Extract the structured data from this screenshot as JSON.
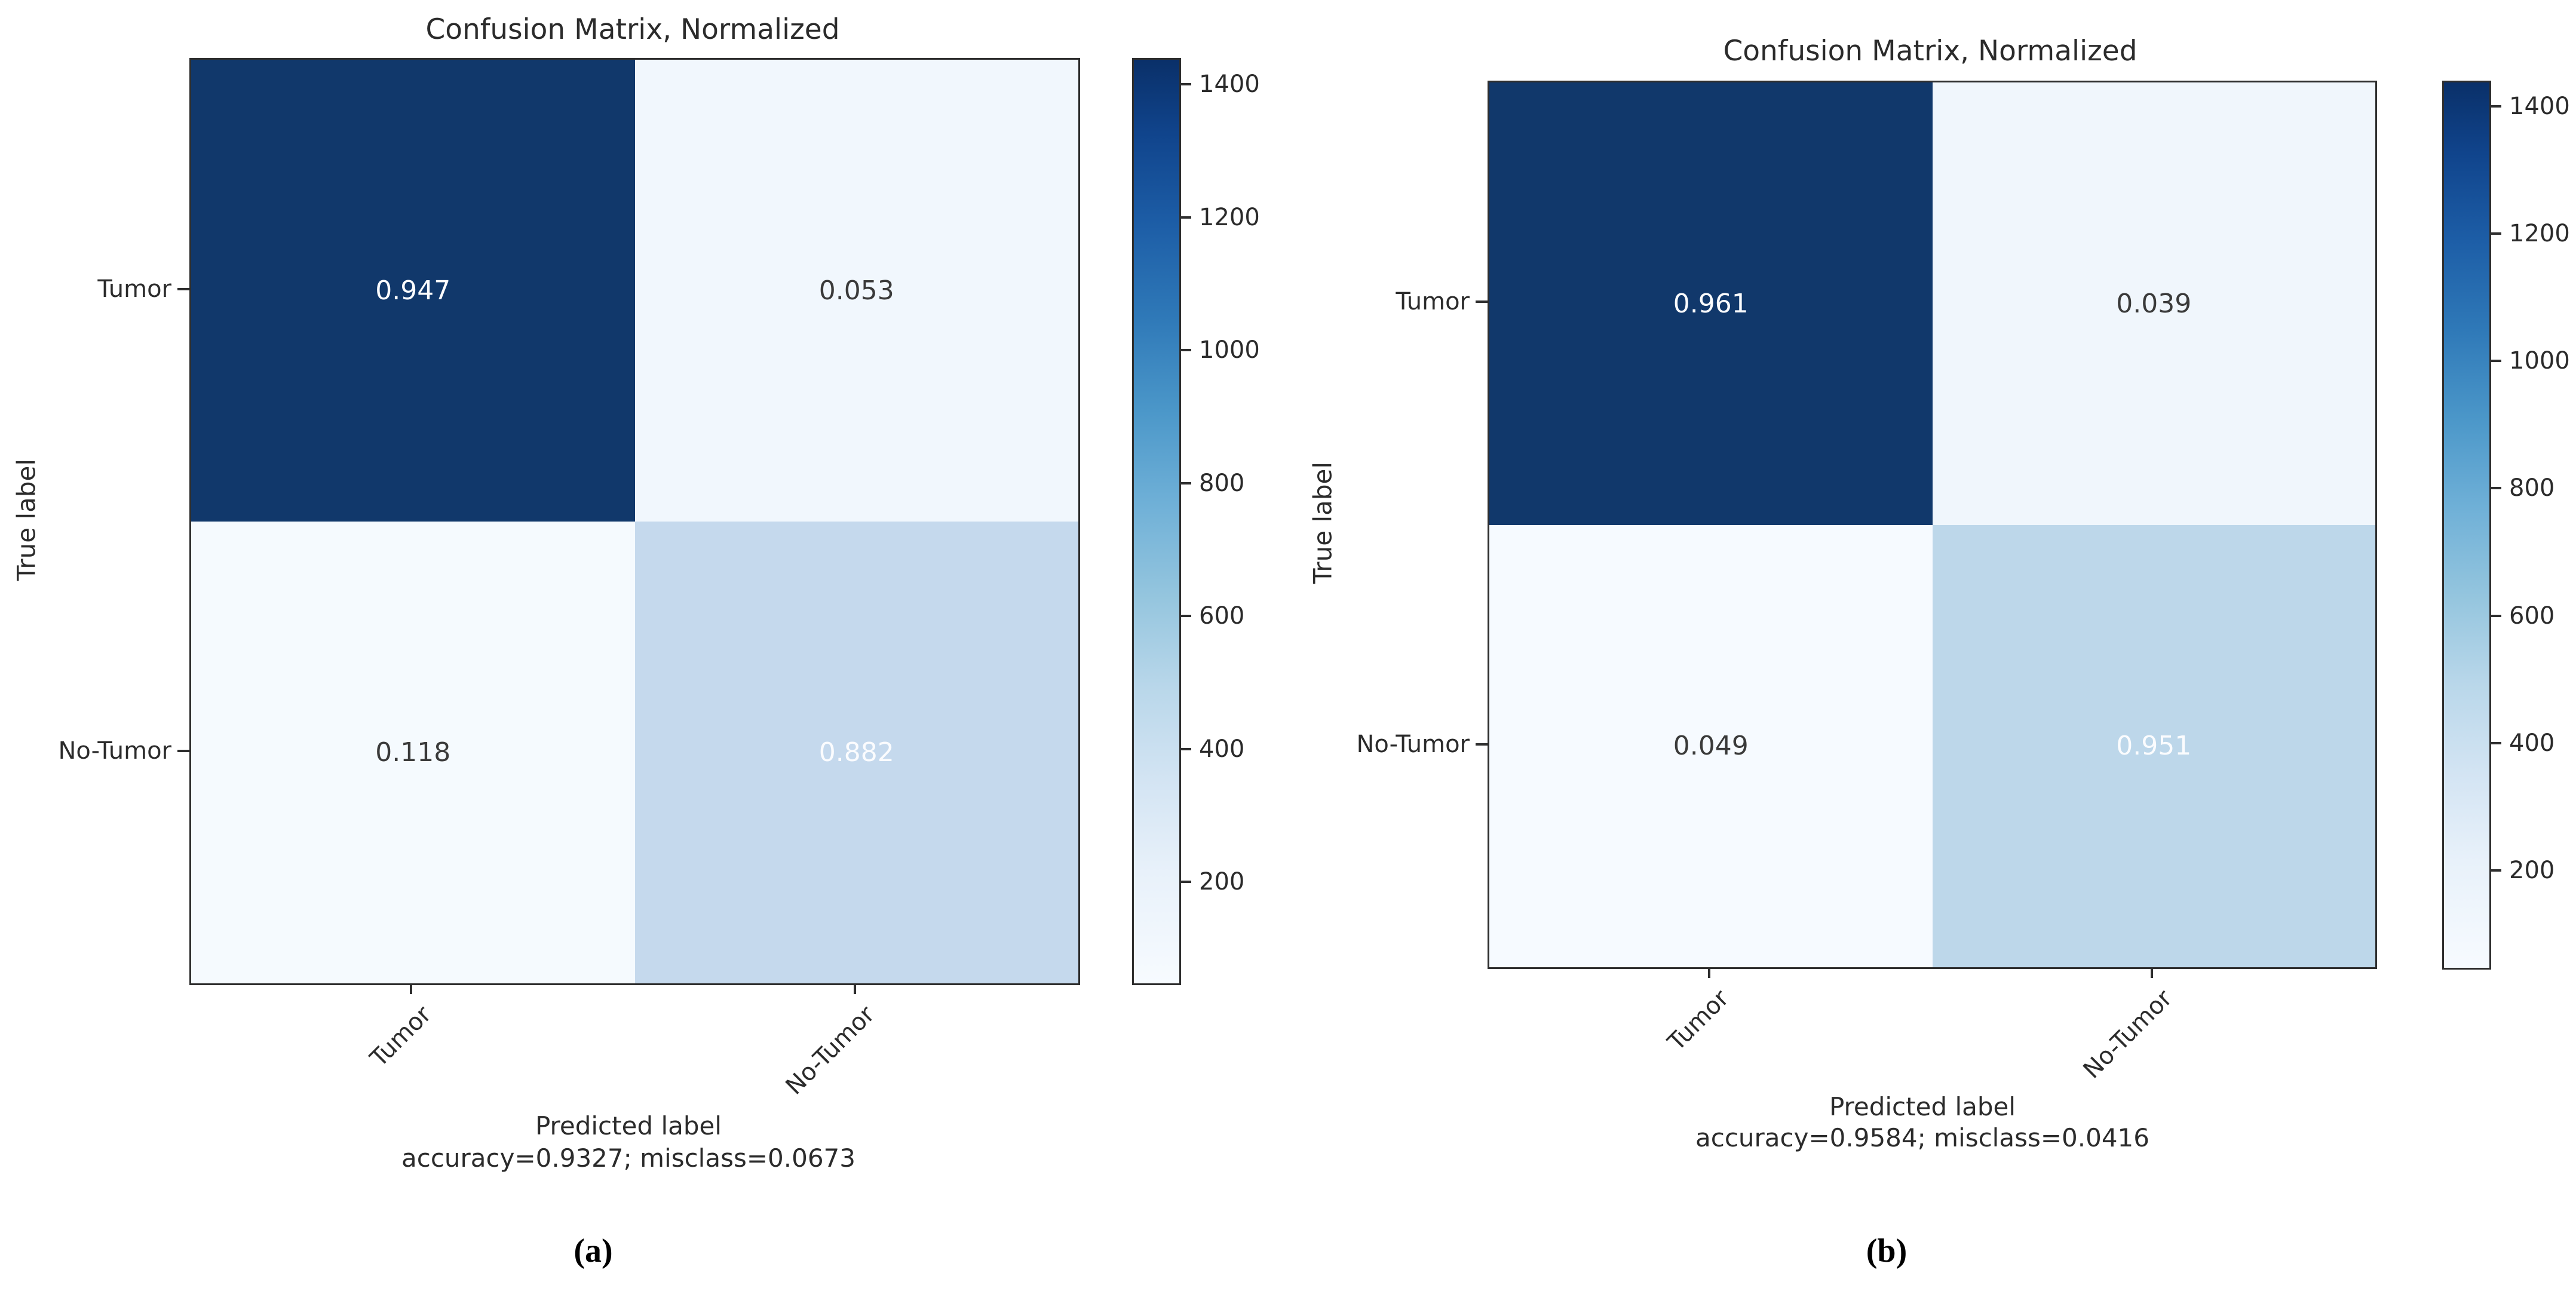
{
  "chart_data": [
    {
      "type": "heatmap",
      "title": "Confusion Matrix, Normalized",
      "xlabel": "Predicted label",
      "ylabel": "True label",
      "footnote": "accuracy=0.9327; misclass=0.0673",
      "caption": "(a)",
      "categories_x": [
        "Tumor",
        "No-Tumor"
      ],
      "categories_y": [
        "Tumor",
        "No-Tumor"
      ],
      "matrix": [
        [
          0.947,
          0.053
        ],
        [
          0.118,
          0.882
        ]
      ],
      "cell_colors": [
        [
          "#11386b",
          "#f1f7fd"
        ],
        [
          "#f5fafe",
          "#c5d9ed"
        ]
      ],
      "colorbar": {
        "ticks": [
          1400,
          1200,
          1000,
          800,
          600,
          400,
          200
        ],
        "top_color": "#0a3069",
        "bottom_color": "#f7fbff"
      }
    },
    {
      "type": "heatmap",
      "title": "Confusion Matrix, Normalized",
      "xlabel": "Predicted label",
      "ylabel": "True label",
      "footnote": "accuracy=0.9584; misclass=0.0416",
      "caption": "(b)",
      "categories_x": [
        "Tumor",
        "No-Tumor"
      ],
      "categories_y": [
        "Tumor",
        "No-Tumor"
      ],
      "matrix": [
        [
          0.961,
          0.039
        ],
        [
          0.049,
          0.951
        ]
      ],
      "cell_colors": [
        [
          "#11386b",
          "#f0f6fc"
        ],
        [
          "#f6faff",
          "#bdd7ea"
        ]
      ],
      "colorbar": {
        "ticks": [
          1400,
          1200,
          1000,
          800,
          600,
          400,
          200
        ],
        "top_color": "#0a3069",
        "bottom_color": "#f7fbff"
      }
    }
  ]
}
